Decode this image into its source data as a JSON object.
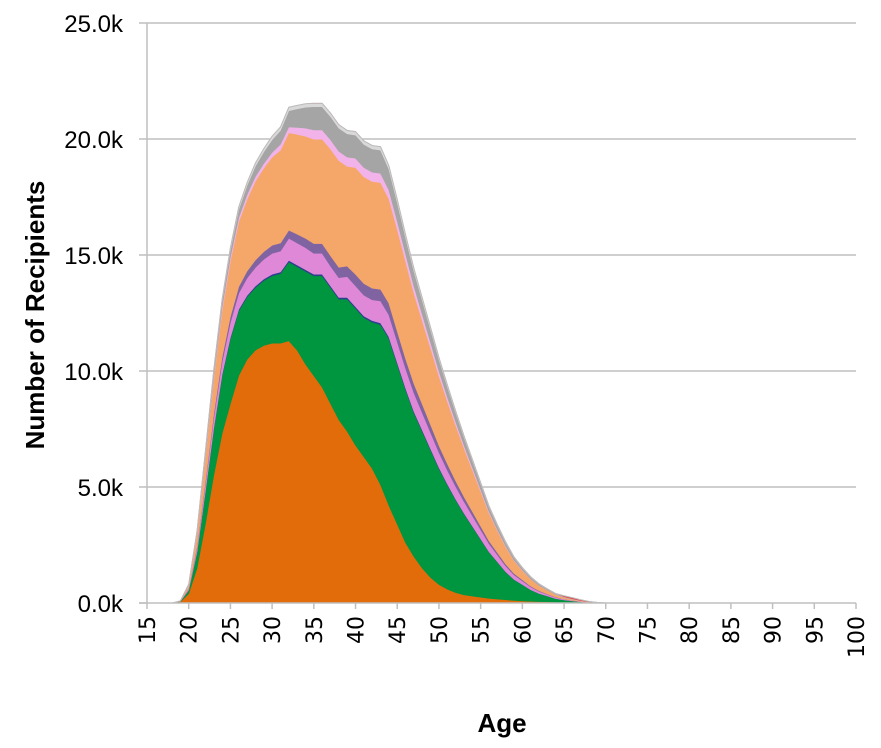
{
  "chart_data": {
    "type": "area",
    "stacked": true,
    "xlabel": "Age",
    "ylabel": "Number of Recipients",
    "xlim": [
      15,
      100
    ],
    "ylim": [
      0,
      25000
    ],
    "grid": "horizontal",
    "legend": "none",
    "y_ticks": [
      {
        "value": 0,
        "label": "0.0k"
      },
      {
        "value": 5000,
        "label": "5.0k"
      },
      {
        "value": 10000,
        "label": "10.0k"
      },
      {
        "value": 15000,
        "label": "15.0k"
      },
      {
        "value": 20000,
        "label": "20.0k"
      },
      {
        "value": 25000,
        "label": "25.0k"
      }
    ],
    "x_ticks": [
      {
        "value": 15,
        "label": "15"
      },
      {
        "value": 20,
        "label": "20"
      },
      {
        "value": 25,
        "label": "25"
      },
      {
        "value": 30,
        "label": "30"
      },
      {
        "value": 35,
        "label": "35"
      },
      {
        "value": 40,
        "label": "40"
      },
      {
        "value": 45,
        "label": "45"
      },
      {
        "value": 50,
        "label": "50"
      },
      {
        "value": 55,
        "label": "55"
      },
      {
        "value": 60,
        "label": "60"
      },
      {
        "value": 65,
        "label": "65"
      },
      {
        "value": 70,
        "label": "70"
      },
      {
        "value": 75,
        "label": "75"
      },
      {
        "value": 80,
        "label": "80"
      },
      {
        "value": 85,
        "label": "85"
      },
      {
        "value": 90,
        "label": "90"
      },
      {
        "value": 95,
        "label": "95"
      },
      {
        "value": 100,
        "label": "100"
      }
    ],
    "x": [
      15,
      16,
      17,
      18,
      19,
      20,
      21,
      22,
      23,
      24,
      25,
      26,
      27,
      28,
      29,
      30,
      31,
      32,
      33,
      34,
      35,
      36,
      37,
      38,
      39,
      40,
      41,
      42,
      43,
      44,
      45,
      46,
      47,
      48,
      49,
      50,
      51,
      52,
      53,
      54,
      55,
      56,
      57,
      58,
      59,
      60,
      61,
      62,
      63,
      64,
      65,
      66,
      67,
      68,
      69,
      70,
      75,
      80,
      85,
      90,
      95,
      100
    ],
    "series": [
      {
        "color": "#e36c0a",
        "values": [
          0,
          0,
          0,
          0,
          50,
          400,
          1500,
          3400,
          5500,
          7300,
          8600,
          9800,
          10500,
          10900,
          11100,
          11200,
          11200,
          11300,
          10900,
          10300,
          9800,
          9300,
          8600,
          7900,
          7400,
          6800,
          6300,
          5800,
          5100,
          4200,
          3400,
          2600,
          2000,
          1500,
          1100,
          800,
          600,
          450,
          350,
          300,
          250,
          200,
          170,
          140,
          110,
          90,
          70,
          60,
          50,
          40,
          30,
          20,
          10,
          0,
          0,
          0,
          0,
          0,
          0,
          0,
          0,
          0
        ]
      },
      {
        "color": "#00953f",
        "values": [
          0,
          0,
          0,
          0,
          20,
          150,
          700,
          1400,
          2000,
          2500,
          2800,
          2800,
          2700,
          2700,
          2800,
          2900,
          3000,
          3400,
          3600,
          4000,
          4300,
          4800,
          5000,
          5200,
          5700,
          5900,
          6000,
          6300,
          6900,
          7200,
          6900,
          6600,
          6200,
          5900,
          5500,
          5000,
          4500,
          4000,
          3500,
          3000,
          2500,
          2000,
          1600,
          1200,
          900,
          700,
          500,
          350,
          250,
          150,
          100,
          70,
          40,
          20,
          10,
          0,
          0,
          0,
          0,
          0,
          0,
          0
        ]
      },
      {
        "color": "#2e3f8f",
        "values": [
          0,
          0,
          0,
          0,
          0,
          5,
          10,
          20,
          30,
          40,
          50,
          55,
          60,
          65,
          65,
          70,
          70,
          70,
          70,
          70,
          70,
          70,
          70,
          70,
          70,
          70,
          70,
          70,
          70,
          70,
          65,
          60,
          55,
          50,
          45,
          40,
          35,
          30,
          25,
          20,
          15,
          12,
          10,
          8,
          6,
          5,
          4,
          3,
          2,
          1,
          1,
          0,
          0,
          0,
          0,
          0,
          0,
          0,
          0,
          0,
          0,
          0
        ]
      },
      {
        "color": "#df88d8",
        "values": [
          0,
          0,
          0,
          0,
          5,
          50,
          180,
          320,
          450,
          550,
          650,
          700,
          750,
          800,
          850,
          900,
          900,
          950,
          950,
          950,
          900,
          900,
          850,
          850,
          900,
          900,
          900,
          900,
          950,
          950,
          900,
          850,
          800,
          750,
          700,
          650,
          600,
          550,
          500,
          450,
          400,
          350,
          300,
          250,
          200,
          160,
          120,
          90,
          70,
          50,
          30,
          20,
          10,
          5,
          2,
          0,
          0,
          0,
          0,
          0,
          0,
          0
        ]
      },
      {
        "color": "#8064a2",
        "values": [
          0,
          0,
          0,
          0,
          2,
          20,
          60,
          110,
          160,
          200,
          250,
          280,
          300,
          320,
          330,
          350,
          350,
          350,
          380,
          400,
          420,
          420,
          450,
          450,
          450,
          500,
          500,
          500,
          500,
          500,
          450,
          420,
          400,
          370,
          340,
          300,
          270,
          240,
          210,
          180,
          150,
          120,
          100,
          80,
          60,
          45,
          35,
          25,
          18,
          12,
          8,
          5,
          3,
          1,
          0,
          0,
          0,
          0,
          0,
          0,
          0,
          0
        ]
      },
      {
        "color": "#f5a76a",
        "values": [
          0,
          0,
          0,
          0,
          10,
          120,
          500,
          1000,
          1500,
          2000,
          2400,
          2800,
          3100,
          3400,
          3600,
          3800,
          4000,
          4200,
          4300,
          4400,
          4500,
          4500,
          4600,
          4600,
          4300,
          4600,
          4600,
          4600,
          4600,
          4500,
          4400,
          4200,
          3900,
          3600,
          3300,
          3000,
          2700,
          2400,
          2100,
          1800,
          1500,
          1200,
          950,
          750,
          550,
          400,
          300,
          220,
          160,
          110,
          70,
          45,
          25,
          12,
          5,
          2,
          0,
          0,
          0,
          0,
          0,
          0
        ]
      },
      {
        "color": "#f2b3ea",
        "values": [
          0,
          0,
          0,
          0,
          2,
          20,
          50,
          90,
          120,
          150,
          170,
          180,
          190,
          200,
          200,
          200,
          250,
          250,
          300,
          350,
          400,
          400,
          400,
          400,
          400,
          400,
          400,
          400,
          400,
          380,
          350,
          320,
          300,
          270,
          240,
          210,
          180,
          150,
          120,
          100,
          80,
          60,
          45,
          35,
          25,
          18,
          12,
          8,
          5,
          3,
          2,
          1,
          0,
          0,
          0,
          0,
          0,
          0,
          0,
          0,
          0,
          0
        ]
      },
      {
        "color": "#a5a5a5",
        "values": [
          0,
          0,
          0,
          0,
          3,
          30,
          80,
          150,
          200,
          250,
          300,
          350,
          400,
          450,
          500,
          550,
          600,
          700,
          800,
          900,
          1000,
          1000,
          1000,
          1000,
          1000,
          1000,
          1000,
          1000,
          1000,
          900,
          800,
          700,
          650,
          600,
          550,
          500,
          450,
          400,
          350,
          300,
          250,
          200,
          170,
          140,
          110,
          90,
          70,
          55,
          40,
          30,
          20,
          12,
          8,
          4,
          2,
          0,
          0,
          0,
          0,
          0,
          0,
          0
        ]
      },
      {
        "color": "#d9d9d9",
        "values": [
          0,
          0,
          0,
          0,
          2,
          20,
          40,
          60,
          80,
          90,
          100,
          110,
          120,
          130,
          140,
          150,
          150,
          150,
          150,
          150,
          150,
          150,
          150,
          150,
          150,
          150,
          150,
          150,
          150,
          150,
          140,
          130,
          120,
          110,
          100,
          90,
          80,
          70,
          60,
          55,
          50,
          45,
          40,
          35,
          30,
          25,
          20,
          18,
          15,
          12,
          10,
          8,
          6,
          4,
          2,
          1,
          0,
          0,
          0,
          0,
          0,
          0
        ]
      },
      {
        "color": "#e63b3b",
        "values": [
          0,
          0,
          0,
          0,
          0,
          0,
          0,
          0,
          0,
          0,
          0,
          0,
          0,
          0,
          0,
          0,
          0,
          0,
          0,
          0,
          0,
          0,
          0,
          0,
          0,
          0,
          0,
          0,
          0,
          0,
          0,
          0,
          0,
          0,
          0,
          0,
          0,
          0,
          0,
          0,
          0,
          0,
          0,
          0,
          0,
          0,
          0,
          0,
          0,
          0,
          40,
          50,
          40,
          20,
          5,
          0,
          0,
          0,
          0,
          0,
          0,
          0
        ]
      }
    ]
  }
}
